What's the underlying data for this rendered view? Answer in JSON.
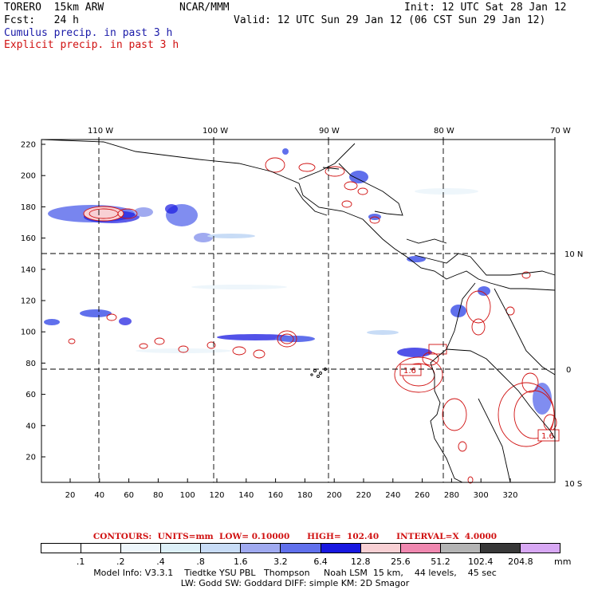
{
  "header": {
    "model": "TORERO  15km ARW",
    "org": "NCAR/MMM",
    "init": "Init: 12 UTC Sat 28 Jan 12",
    "fcst": "Fcst:   24 h",
    "valid": "Valid: 12 UTC Sun 29 Jan 12 (06 CST Sun 29 Jan 12)",
    "cumulus": "Cumulus precip. in past 3 h",
    "explicit": "Explicit precip. in past 3 h"
  },
  "map": {
    "lon_labels": [
      "110 W",
      "100 W",
      "90 W",
      "80 W",
      "70 W"
    ],
    "lat_labels": [
      "10 N",
      "0",
      "10 S"
    ],
    "y_ticks": [
      "220",
      "200",
      "180",
      "160",
      "140",
      "120",
      "100",
      "80",
      "60",
      "40",
      "20"
    ],
    "x_ticks": [
      "20",
      "40",
      "60",
      "80",
      "100",
      "120",
      "140",
      "160",
      "180",
      "200",
      "220",
      "240",
      "260",
      "280",
      "300",
      "320"
    ],
    "box_labels": [
      "1.6",
      "1.6"
    ]
  },
  "contours_line": "CONTOURS:  UNITS=mm  LOW= 0.10000      HIGH=  102.40      INTERVAL=X  4.0000",
  "legend": {
    "labels": [
      ".1",
      ".2",
      ".4",
      ".8",
      "1.6",
      "3.2",
      "6.4",
      "12.8",
      "25.6",
      "51.2",
      "102.4",
      "204.8"
    ],
    "unit": "mm",
    "colors": [
      "#ffffff",
      "#ffffff",
      "#eef6fb",
      "#ddf0f8",
      "#c8dcf6",
      "#a0aaf0",
      "#6070ec",
      "#1818e0",
      "#f8d0d4",
      "#f088b0",
      "#b4b4b4",
      "#383838",
      "#d8a8f4"
    ]
  },
  "footer": {
    "line1": "Model Info: V3.3.1    Tiedtke YSU PBL   Thompson     Noah LSM  15 km,    44 levels,    45 sec",
    "line2": "LW: Godd SW: Goddard DIFF: simple KM: 2D Smagor"
  }
}
